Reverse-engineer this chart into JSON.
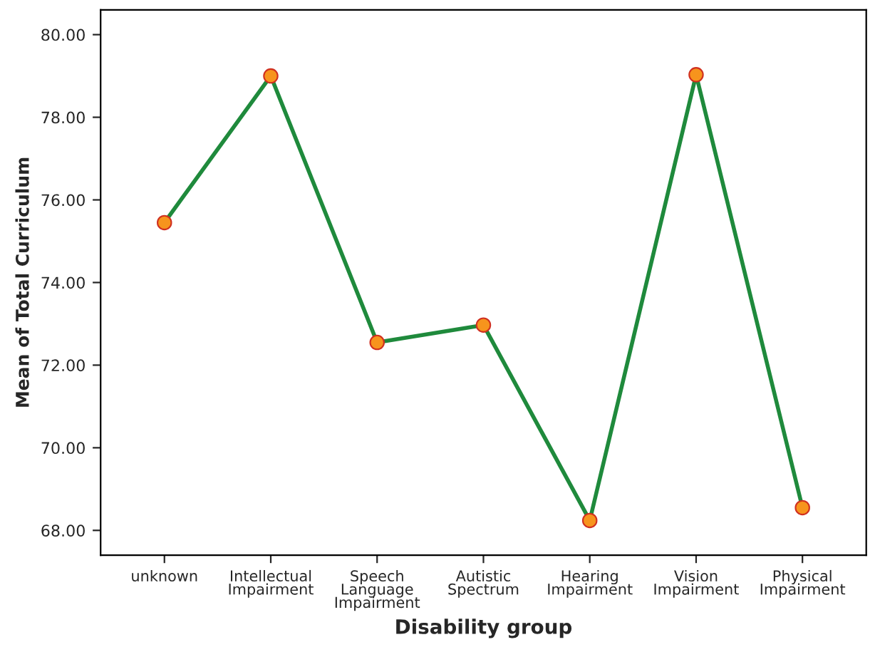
{
  "chart_data": {
    "type": "line",
    "xlabel": "Disability group",
    "ylabel": "Mean of Total Curriculum",
    "categories": [
      "unknown",
      "Intellectual Impairment",
      "Speech Language Impairment",
      "Autistic Spectrum",
      "Hearing Impairment",
      "Vision Impairment",
      "Physical Impairment"
    ],
    "series": [
      {
        "color": "#1f8a3c",
        "values": [
          75.45,
          79.0,
          72.55,
          72.97,
          68.24,
          79.03,
          68.55
        ]
      }
    ],
    "marker": "circle",
    "line_style": "solid",
    "ylim": [
      67.4,
      80.6
    ],
    "yticks": [
      {
        "value": 68,
        "label": "68.00"
      },
      {
        "value": 70,
        "label": "70.00"
      },
      {
        "value": 72,
        "label": "72.00"
      },
      {
        "value": 74,
        "label": "74.00"
      },
      {
        "value": 76,
        "label": "76.00"
      },
      {
        "value": 78,
        "label": "78.00"
      },
      {
        "value": 80,
        "label": "80.00"
      }
    ],
    "grid": false,
    "legend": false
  }
}
